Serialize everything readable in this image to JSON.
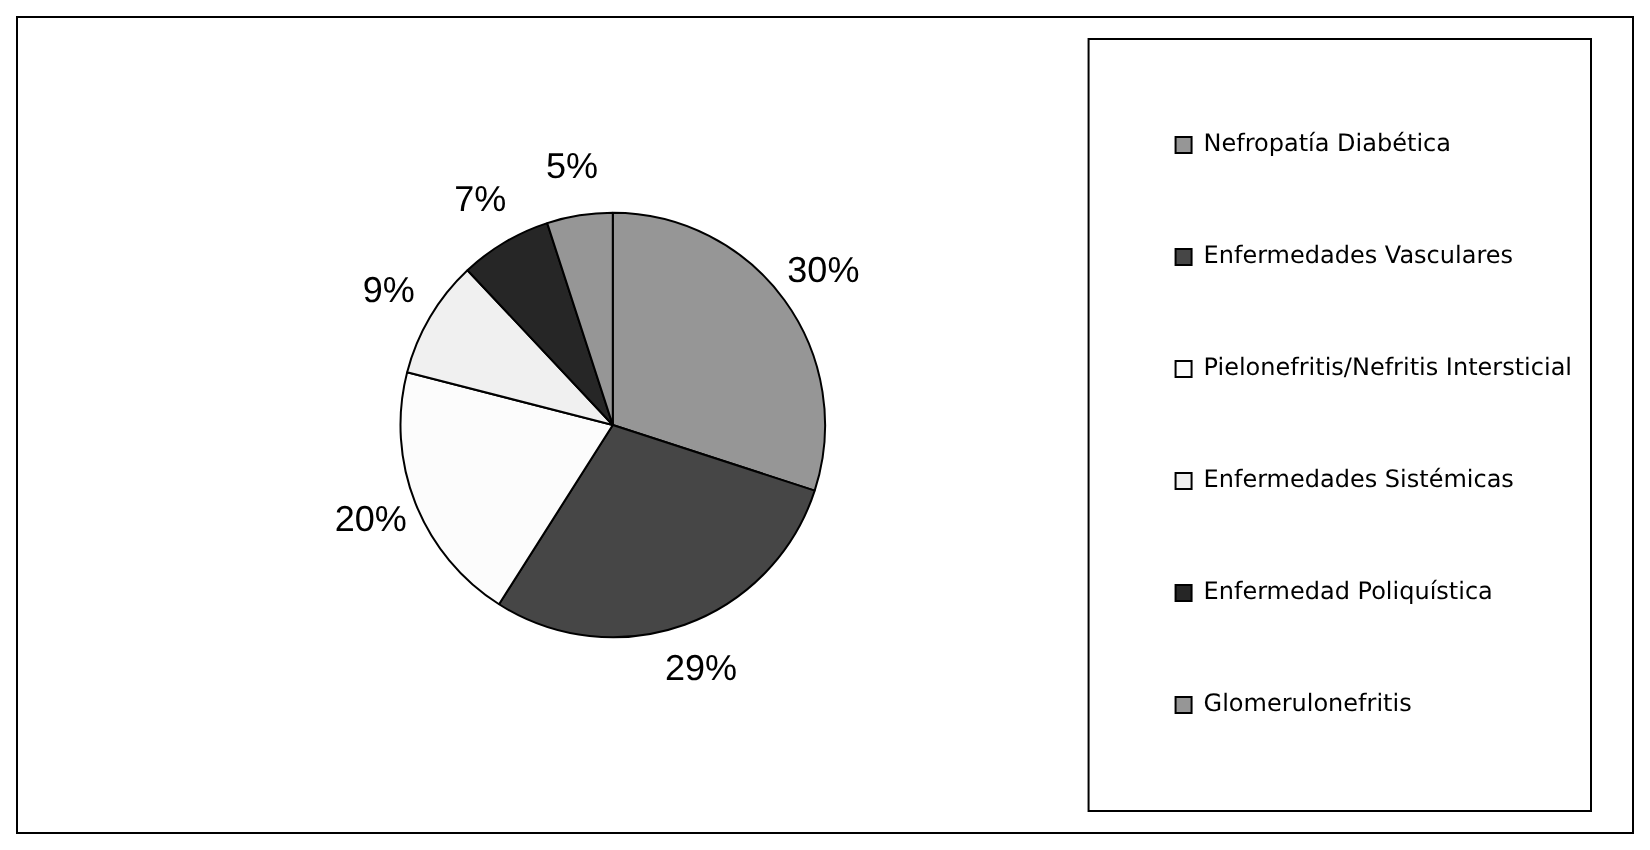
{
  "chart_data": {
    "type": "pie",
    "categories": [
      "Nefropatía Diabética",
      "Enfermedades Vasculares",
      "Pielonefritis/Nefritis Intersticial",
      "Enfermedades Sistémicas",
      "Enfermedad Poliquística",
      "Glomerulonefritis"
    ],
    "values": [
      30,
      29,
      20,
      9,
      7,
      5
    ],
    "colors": [
      "#969696",
      "#464646",
      "#fcfcfc",
      "#f0f0f0",
      "#262626",
      "#969696"
    ],
    "value_labels": [
      "30%",
      "29%",
      "20%",
      "9%",
      "7%",
      "5%"
    ],
    "legend": "right"
  }
}
